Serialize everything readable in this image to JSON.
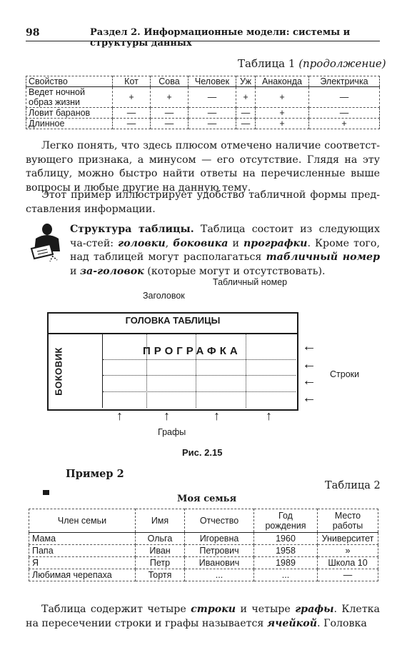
{
  "header": {
    "page_number": "98",
    "running_title": "Раздел 2. Информационные модели: системы и структуры данных"
  },
  "table1": {
    "caption_main": "Таблица 1 ",
    "caption_italic": "(продолжение)",
    "columns": [
      "Свойство",
      "Кот",
      "Сова",
      "Человек",
      "Уж",
      "Анаконда",
      "Электричка"
    ],
    "rows": [
      {
        "cells": [
          "Ведет ночной образ жизни",
          "+",
          "+",
          "—",
          "+",
          "+",
          "—"
        ]
      },
      {
        "cells": [
          "Ловит баранов",
          "—",
          "—",
          "—",
          "—",
          "+",
          "—"
        ]
      },
      {
        "cells": [
          "Длинное",
          "—",
          "—",
          "—",
          "—",
          "+",
          "+"
        ]
      }
    ]
  },
  "para1": "Легко понять, что здесь плюсом отмечено наличие соответст-вующего признака, а минусом — его отсутствие. Глядя на эту таблицу, можно быстро найти ответы на перечисленные выше вопросы и любые другие на данную тему.",
  "para2": "Этот пример иллюстрирует удобство табличной формы пред-ставления информации.",
  "structure": {
    "b1": "Структура таблицы.",
    "t1": " Таблица состоит из следующих ча-стей: ",
    "bi1": "головки",
    "t2": ", ",
    "bi2": "боковика",
    "t3": " и ",
    "bi3": "прографки",
    "t4": ". Кроме того, над таблицей могут располагаться ",
    "bi4": "табличный номер",
    "t5": " и ",
    "bi5": "за-головок",
    "t6": " (которые могут и отсутствовать)."
  },
  "diagram": {
    "label_table_number": "Табличный номер",
    "label_title": "Заголовок",
    "head": "ГОЛОВКА ТАБЛИЦЫ",
    "prografka": "ПРОГРАФКА",
    "bokovik": "БОКОВИК",
    "label_rows": "Строки",
    "label_columns": "Графы",
    "figure_caption": "Рис. 2.15",
    "arrow_glyph_left": "←",
    "arrow_glyph_up": "↑"
  },
  "example": {
    "title": "Пример 2",
    "table_number": "Таблица 2",
    "table_title": "Моя семья"
  },
  "table2": {
    "columns": [
      "Член семьи",
      "Имя",
      "Отчество",
      "Год рождения",
      "Место работы"
    ],
    "rows": [
      {
        "cells": [
          "Мама",
          "Ольга",
          "Игоревна",
          "1960",
          "Университет"
        ]
      },
      {
        "cells": [
          "Папа",
          "Иван",
          "Петрович",
          "1958",
          "»"
        ]
      },
      {
        "cells": [
          "Я",
          "Петр",
          "Иванович",
          "1989",
          "Школа 10"
        ]
      },
      {
        "cells": [
          "Любимая черепаха",
          "Тортя",
          "...",
          "...",
          "—"
        ]
      }
    ]
  },
  "para_last": {
    "t1": "Таблица содержит четыре ",
    "bi1": "строки",
    "t2": " и четыре ",
    "bi2": "графы",
    "t3": ". Клетка на пересечении строки и графы называется ",
    "bi3": "ячейкой",
    "t4": ". Головка"
  }
}
